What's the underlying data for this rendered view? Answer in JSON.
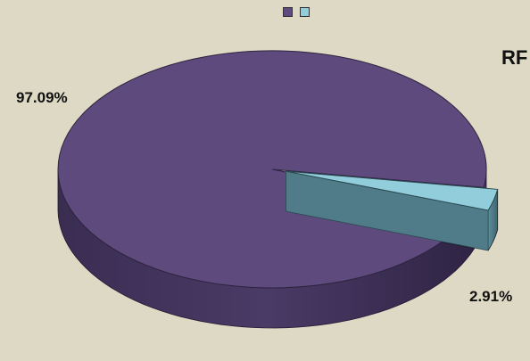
{
  "chart_data": {
    "type": "pie",
    "title": "RF",
    "categories": [
      "",
      ""
    ],
    "values": [
      97.09,
      2.91
    ],
    "data_labels": [
      "97.09%",
      "2.91%"
    ],
    "colors": [
      "#5e4a7d",
      "#92cddc"
    ],
    "style": "3d",
    "legend_position": "top"
  }
}
